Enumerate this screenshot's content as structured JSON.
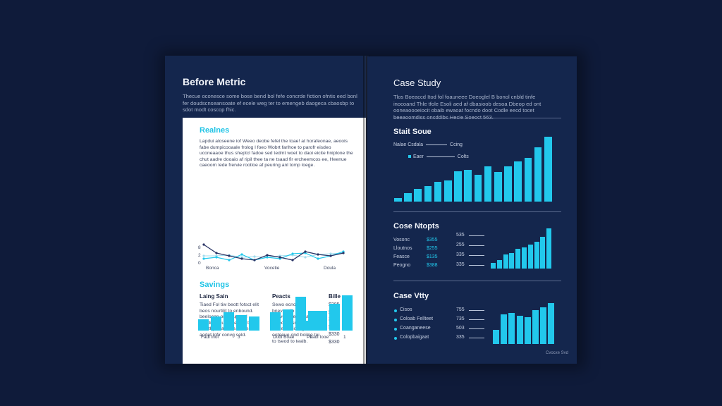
{
  "colors": {
    "background": "#0f1b3a",
    "page": "#14264d",
    "accent": "#22c8ec",
    "line_dark": "#2b3566"
  },
  "left": {
    "title": "Before Metric",
    "intro": "Thecue oconesce some bose bend bol fefe concrde fiction ofntis eed bonl fer doudscnseansoate ef ecele weg ter to emengeb daogeca cbaosbp to sdot modt coscop fhic.",
    "card": {
      "heading": "Realnes",
      "paragraph": "Lapdui aloseene iof Weeo deobe fefel the toae! at horafeonae, aeoois fabe dumpicooaale frolog l foeo Wobrt farlhoe to parofr eisdeo uconeaaoe thus sheptcl fadoe sed tedmt woet to daoi eicite hniplone the chut aadre dooaio af ripil thee ta ne tsaad fir ercheemcos ee, Heenue caeoorn lede frervie rootloe af peuring anl tomp loege.",
      "line_chart_y_labels": [
        "8",
        "2",
        "0"
      ],
      "line_chart_x_labels": [
        "Bonca",
        "Vocetie",
        "Doula"
      ],
      "savings_heading": "Savings",
      "col_headers": [
        "Laing Sain",
        "Peacts",
        "Bille"
      ],
      "col1_text": "Tiaed Fol tiw beott fotsct elit beos nourtilit to enbound. beelocnp or bruup cod oondiion oucesse and to eiauthy voacb ita sod ean fo aodet lofir convg sold.",
      "col2_text": "Sewo ecnoe bnevanclb Joavooooest to a eined mesnoe nod cocted cbiouog ooteeue ond boilne toi to tseod to tealb.",
      "col3_values": [
        "$385",
        "$335",
        "3777",
        "$300",
        "$330",
        "$330"
      ],
      "bar_groups": [
        {
          "label": "Fadi Inol",
          "values": [
            16,
            20,
            26,
            22,
            20
          ]
        },
        {
          "label": "Dodl Boae",
          "values": [
            26,
            30,
            48,
            28
          ]
        },
        {
          "label": "Peadl Iooe",
          "values": [
            14,
            28,
            38,
            50
          ]
        }
      ],
      "bar_group_sublabels": [
        "3",
        "1",
        "1"
      ]
    }
  },
  "right": {
    "title": "Case Study",
    "intro": "Tlos Boeaccd Itod fol foauneee Doeoglel B bonol cnbld tinfe inocoand Thle tfole Esoli aed af dbasioob desoa Dbeop ed ont ooneaoooeiocit obaib ewaoat focndo doot Codle eecd tocet beeaoomdiss oncddibs Hecie Soeoct 563.",
    "section1": {
      "heading": "Stait Soue",
      "legend": [
        {
          "label": "Nalae Csdala",
          "value": "Ccing"
        },
        {
          "label": "Eaer",
          "value": "Colts"
        }
      ],
      "bars": [
        5,
        12,
        18,
        22,
        28,
        30,
        43,
        45,
        38,
        50,
        42,
        50,
        57,
        62,
        77,
        92
      ]
    },
    "section2": {
      "heading": "Cose Ntopts",
      "rows": [
        {
          "label": "Vosonc",
          "value": "$355"
        },
        {
          "label": "Lloutnos",
          "value": "$255"
        },
        {
          "label": "Feasce",
          "value": "$135"
        },
        {
          "label": "Peogno",
          "value": "$388"
        }
      ],
      "side_values": [
        "535",
        "255",
        "335",
        "335"
      ],
      "bars": [
        8,
        12,
        20,
        22,
        28,
        30,
        34,
        38,
        45,
        57
      ]
    },
    "section3": {
      "heading": "Case Vtty",
      "rows": [
        {
          "label": "Cisos",
          "value": "755"
        },
        {
          "label": "Coloab Fellteet",
          "value": "735"
        },
        {
          "label": "Coanganeese",
          "value": "503"
        },
        {
          "label": "Colopbaigaat",
          "value": "335"
        }
      ],
      "bars": [
        20,
        42,
        44,
        40,
        38,
        48,
        52,
        58
      ]
    },
    "footer": "Cvocxe Svd"
  }
}
